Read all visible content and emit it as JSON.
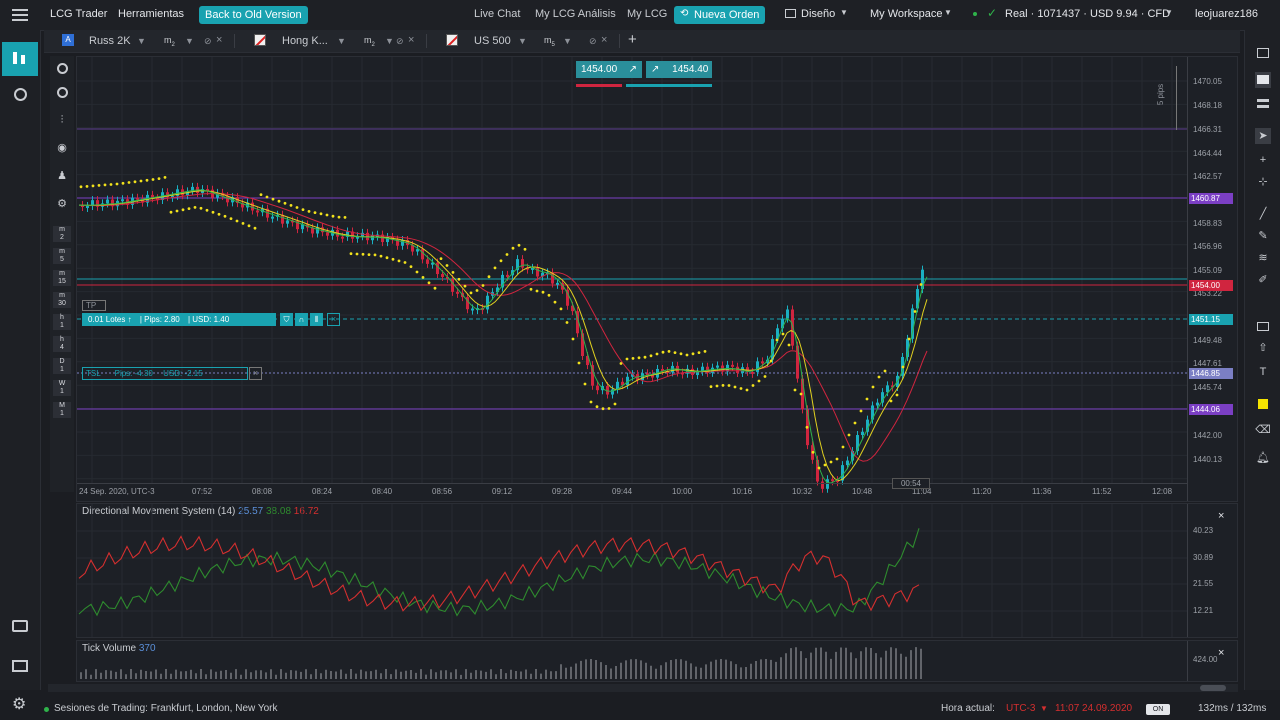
{
  "topbar": {
    "menu_icon": "hamburger-icon",
    "app_name": "LCG Trader",
    "tools": "Herramientas",
    "old_version": "Back to Old Version",
    "live_chat": "Live Chat",
    "analysis": "My LCG Análisis",
    "my_lcg": "My LCG",
    "new_order": "Nueva Orden",
    "design": "Diseño",
    "workspace": "My Workspace",
    "account": "Real · 1071437 · USD 9.94 · CFD",
    "user": "leojuarez186",
    "accent_color": "#19a2b0"
  },
  "tabs": [
    {
      "label": "Russ 2K",
      "tf": "m",
      "tf_sub": "2"
    },
    {
      "label": "Hong K...",
      "tf": "m",
      "tf_sub": "2"
    },
    {
      "label": "US 500",
      "tf": "m",
      "tf_sub": "5"
    }
  ],
  "left_tools": [
    "zoom-in-icon",
    "zoom-out-icon",
    "indicators-icon",
    "draw-icon",
    "person-icon",
    "settings-icon"
  ],
  "timeframes": [
    {
      "u": "m",
      "n": "2"
    },
    {
      "u": "m",
      "n": "5"
    },
    {
      "u": "m",
      "n": "15"
    },
    {
      "u": "m",
      "n": "30"
    },
    {
      "u": "h",
      "n": "1"
    },
    {
      "u": "h",
      "n": "4"
    },
    {
      "u": "D",
      "n": "1"
    },
    {
      "u": "W",
      "n": "1"
    },
    {
      "u": "M",
      "n": "1"
    }
  ],
  "quote": {
    "sell": "1454.00",
    "buy": "1454.40"
  },
  "pips_label": "5 pips",
  "price_axis": [
    "1470.05",
    "1468.18",
    "1466.31",
    "1464.44",
    "1462.57",
    "1460.70",
    "1458.83",
    "1456.96",
    "1455.09",
    "1453.22",
    "1451.35",
    "1449.48",
    "1447.61",
    "1445.74",
    "1442.00",
    "1440.13"
  ],
  "price_tags": {
    "t1": "1460.87",
    "t2": "1454.00",
    "t3": "1451.15",
    "t4": "1446.85",
    "t5": "1444.06"
  },
  "time_axis": [
    "24 Sep. 2020, UTC-3",
    "07:52",
    "08:08",
    "08:24",
    "08:40",
    "08:56",
    "09:12",
    "09:28",
    "09:44",
    "10:00",
    "10:16",
    "10:32",
    "10:48",
    "11:04",
    "11:20",
    "11:36",
    "11:52",
    "12:08"
  ],
  "countdown": "00:54",
  "tp_label": "TP",
  "position": {
    "lots": "0.01 Lotes ↑",
    "pips": "Pips: 2.80",
    "usd": "USD: 1.40"
  },
  "sl": {
    "label": "TSL",
    "pips": "Pips: -4.30",
    "usd": "USD: -2.15"
  },
  "dms": {
    "title": "Directional Movement System (14)",
    "v1": "25.57",
    "v2": "38.08",
    "v3": "16.72",
    "axis": [
      "40.23",
      "30.89",
      "21.55",
      "12.21"
    ]
  },
  "tick": {
    "title": "Tick Volume",
    "value": "370",
    "axis": "424.00"
  },
  "status": {
    "sessions": "Sesiones de Trading: Frankfurt, London, New York",
    "hora": "Hora actual:",
    "tz": "UTC-3",
    "datetime": "11:07 24.09.2020",
    "latency": "132ms / 132ms",
    "on": "ON"
  }
}
